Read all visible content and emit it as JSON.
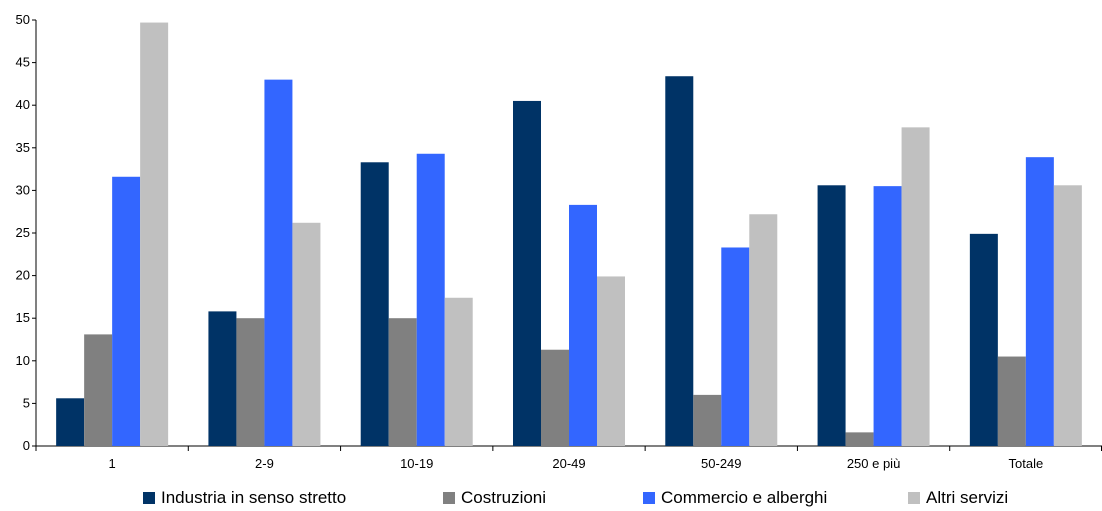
{
  "chart_data": {
    "type": "bar",
    "categories": [
      "1",
      "2-9",
      "10-19",
      "20-49",
      "50-249",
      "250 e più",
      "Totale"
    ],
    "series": [
      {
        "name": "Industria in senso stretto",
        "color": "#003366",
        "values": [
          5.6,
          15.8,
          33.3,
          40.5,
          43.4,
          30.6,
          24.9
        ]
      },
      {
        "name": "Costruzioni",
        "color": "#808080",
        "values": [
          13.1,
          15.0,
          15.0,
          11.3,
          6.0,
          1.6,
          10.5
        ]
      },
      {
        "name": "Commercio e alberghi",
        "color": "#3366ff",
        "values": [
          31.6,
          43.0,
          34.3,
          28.3,
          23.3,
          30.5,
          33.9
        ]
      },
      {
        "name": "Altri servizi",
        "color": "#c0c0c0",
        "values": [
          49.7,
          26.2,
          17.4,
          19.9,
          27.2,
          37.4,
          30.6
        ]
      }
    ],
    "ylim": [
      0,
      50
    ],
    "yticks": [
      0,
      5,
      10,
      15,
      20,
      25,
      30,
      35,
      40,
      45,
      50
    ],
    "grid": false,
    "legend_position": "bottom"
  }
}
